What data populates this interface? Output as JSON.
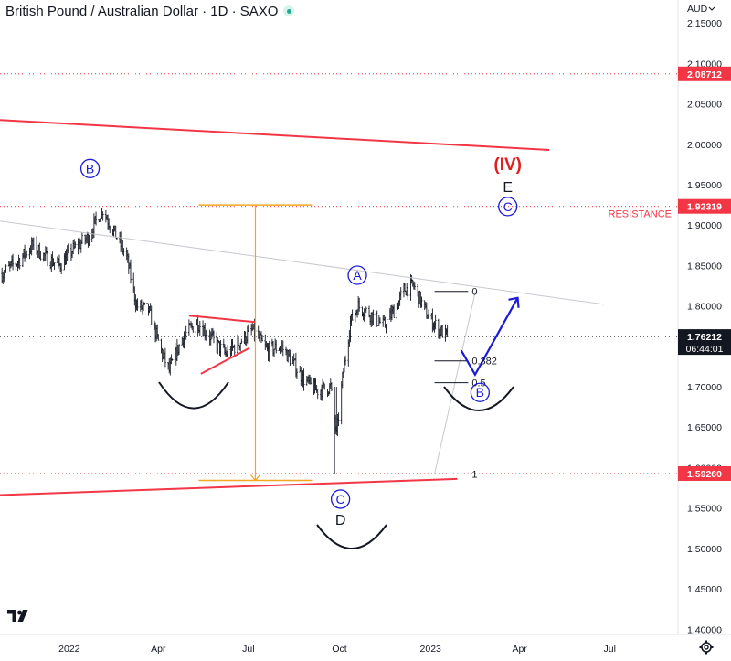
{
  "header": {
    "symbol_title": "British Pound / Australian Dollar · 1D · SAXO",
    "currency": "AUD"
  },
  "colors": {
    "candle": "#131722",
    "trendline_red": "#f23645",
    "price_tag_red": "#f23645",
    "last_price_tag": "#131722",
    "wave_blue": "#1c1ad6",
    "wave_red": "#e01e1e",
    "measure_orange": "#f5a623",
    "fib_gray": "#9598a1",
    "market_open": "#22ab94"
  },
  "icons": {
    "logo": "tradingview-logo-icon",
    "settings": "gear-icon",
    "status": "market-open-dot-icon"
  },
  "chart_data": {
    "type": "candlestick",
    "title": "British Pound / Australian Dollar · 1D · SAXO",
    "y_axis": {
      "unit": "AUD",
      "ticks": [
        "2.15000",
        "2.10000",
        "2.05000",
        "2.00000",
        "1.95000",
        "1.90000",
        "1.85000",
        "1.80000",
        "1.75000",
        "1.70000",
        "1.65000",
        "1.60000",
        "1.55000",
        "1.50000",
        "1.45000",
        "1.40000"
      ],
      "range": [
        1.3935,
        2.1785
      ]
    },
    "x_axis": {
      "ticks": [
        "2022",
        "Apr",
        "Jul",
        "Oct",
        "2023",
        "Apr",
        "Jul"
      ],
      "tick_dates": [
        "2022-01-01",
        "2022-04-01",
        "2022-07-01",
        "2022-10-01",
        "2023-01-01",
        "2023-04-01",
        "2023-07-01"
      ],
      "range": [
        "2021-10-23",
        "2023-09-08"
      ]
    },
    "price_path": [
      [
        "2021-10-25",
        1.84
      ],
      [
        "2021-11-10",
        1.855
      ],
      [
        "2021-11-25",
        1.875
      ],
      [
        "2021-12-08",
        1.86
      ],
      [
        "2021-12-22",
        1.85
      ],
      [
        "2022-01-05",
        1.87
      ],
      [
        "2022-01-20",
        1.885
      ],
      [
        "2022-02-03",
        1.92
      ],
      [
        "2022-02-14",
        1.895
      ],
      [
        "2022-02-28",
        1.86
      ],
      [
        "2022-03-10",
        1.8
      ],
      [
        "2022-03-22",
        1.795
      ],
      [
        "2022-04-05",
        1.74
      ],
      [
        "2022-04-12",
        1.72
      ],
      [
        "2022-04-25",
        1.76
      ],
      [
        "2022-05-10",
        1.78
      ],
      [
        "2022-05-25",
        1.76
      ],
      [
        "2022-06-08",
        1.74
      ],
      [
        "2022-06-22",
        1.755
      ],
      [
        "2022-07-05",
        1.77
      ],
      [
        "2022-07-20",
        1.745
      ],
      [
        "2022-08-03",
        1.75
      ],
      [
        "2022-08-15",
        1.73
      ],
      [
        "2022-08-25",
        1.71
      ],
      [
        "2022-09-08",
        1.695
      ],
      [
        "2022-09-22",
        1.7
      ],
      [
        "2022-09-28",
        1.64
      ],
      [
        "2022-10-04",
        1.71
      ],
      [
        "2022-10-12",
        1.78
      ],
      [
        "2022-10-20",
        1.8
      ],
      [
        "2022-11-01",
        1.79
      ],
      [
        "2022-11-15",
        1.775
      ],
      [
        "2022-11-28",
        1.8
      ],
      [
        "2022-12-05",
        1.82
      ],
      [
        "2022-12-15",
        1.825
      ],
      [
        "2022-12-28",
        1.79
      ],
      [
        "2023-01-10",
        1.77
      ],
      [
        "2023-01-18",
        1.762
      ]
    ],
    "last_price": 1.76212,
    "countdown": "06:44:01",
    "price_tags": [
      {
        "price": 2.08712,
        "label": "2.08712"
      },
      {
        "price": 1.92319,
        "label": "1.92319"
      },
      {
        "price": 1.5926,
        "label": "1.59260"
      }
    ],
    "resistance": {
      "price": 1.92319,
      "label": "RESISTANCE"
    },
    "trendlines": [
      {
        "name": "upper-channel",
        "from": [
          "2021-10-23",
          2.03
        ],
        "to": [
          "2023-05-01",
          1.993
        ],
        "color": "red"
      },
      {
        "name": "lower-channel",
        "from": [
          "2021-10-23",
          1.566
        ],
        "to": [
          "2023-01-28",
          1.586
        ],
        "color": "red"
      },
      {
        "name": "b-d-line",
        "from": [
          "2021-10-23",
          1.905
        ],
        "to": [
          "2023-06-25",
          1.802
        ],
        "color": "gray"
      },
      {
        "name": "triangle-top",
        "from": [
          "2022-05-02",
          1.788
        ],
        "to": [
          "2022-07-08",
          1.78
        ],
        "color": "red"
      },
      {
        "name": "triangle-bottom",
        "from": [
          "2022-05-14",
          1.716
        ],
        "to": [
          "2022-07-02",
          1.748
        ],
        "color": "red"
      }
    ],
    "fibonacci": {
      "from": [
        "2023-01-05",
        1.592
      ],
      "to": [
        "2023-02-08",
        1.818
      ],
      "levels": [
        {
          "ratio": 0,
          "label": "0",
          "price": 1.818
        },
        {
          "ratio": 0.382,
          "label": "0.382",
          "price": 1.732
        },
        {
          "ratio": 0.5,
          "label": "0.5",
          "price": 1.705
        },
        {
          "ratio": 1,
          "label": "1",
          "price": 1.592
        }
      ]
    },
    "measure": {
      "top": 1.925,
      "bottom": 1.592,
      "x": "2022-07-08"
    },
    "wave_labels": [
      {
        "text": "B",
        "circled": true,
        "at": [
          "2022-01-22",
          1.97
        ],
        "color": "blue"
      },
      {
        "text": "A",
        "circled": true,
        "at": [
          "2022-10-19",
          1.838
        ],
        "color": "blue"
      },
      {
        "text": "C",
        "circled": true,
        "at": [
          "2022-10-02",
          1.561
        ],
        "color": "blue"
      },
      {
        "text": "D",
        "circled": false,
        "at": [
          "2022-10-02",
          1.536
        ],
        "color": "black"
      },
      {
        "text": "B",
        "circled": true,
        "at": [
          "2023-02-20",
          1.693
        ],
        "color": "blue"
      },
      {
        "text": "C",
        "circled": true,
        "at": [
          "2023-03-20",
          1.923
        ],
        "color": "blue"
      },
      {
        "text": "E",
        "circled": false,
        "at": [
          "2023-03-20",
          1.948
        ],
        "color": "black"
      },
      {
        "text": "(IV)",
        "circled": false,
        "at": [
          "2023-03-20",
          1.975
        ],
        "color": "red"
      }
    ],
    "projection": [
      [
        "2023-02-01",
        1.745
      ],
      [
        "2023-02-15",
        1.715
      ],
      [
        "2023-03-30",
        1.81
      ]
    ]
  }
}
